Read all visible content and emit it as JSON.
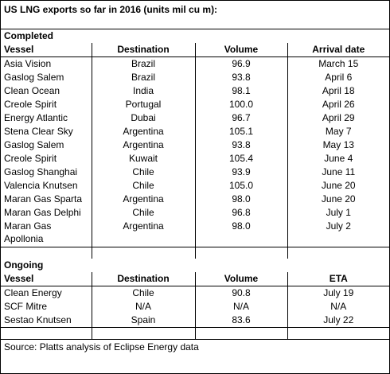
{
  "title": "US LNG exports so far in 2016 (units mil cu m):",
  "completed": {
    "section_label": "Completed",
    "headers": [
      "Vessel",
      "Destination",
      "Volume",
      "Arrival date"
    ],
    "rows": [
      [
        "Asia Vision",
        "Brazil",
        "96.9",
        "March 15"
      ],
      [
        "Gaslog Salem",
        "Brazil",
        "93.8",
        "April 6"
      ],
      [
        "Clean Ocean",
        "India",
        "98.1",
        "April 18"
      ],
      [
        "Creole Spirit",
        "Portugal",
        "100.0",
        "April 26"
      ],
      [
        "Energy Atlantic",
        "Dubai",
        "96.7",
        "April 29"
      ],
      [
        "Stena Clear Sky",
        "Argentina",
        "105.1",
        "May 7"
      ],
      [
        "Gaslog Salem",
        "Argentina",
        "93.8",
        "May 13"
      ],
      [
        "Creole Spirit",
        "Kuwait",
        "105.4",
        "June 4"
      ],
      [
        "Gaslog Shanghai",
        "Chile",
        "93.9",
        "June 11"
      ],
      [
        "Valencia Knutsen",
        "Chile",
        "105.0",
        "June 20"
      ],
      [
        "Maran Gas Sparta",
        "Argentina",
        "98.0",
        "June 20"
      ],
      [
        "Maran Gas Delphi",
        "Chile",
        "96.8",
        "July 1"
      ],
      [
        "Maran Gas Apollonia",
        "Argentina",
        "98.0",
        "July 2"
      ]
    ]
  },
  "ongoing": {
    "section_label": "Ongoing",
    "headers": [
      "Vessel",
      "Destination",
      "Volume",
      "ETA"
    ],
    "rows": [
      [
        "Clean Energy",
        "Chile",
        "90.8",
        "July 19"
      ],
      [
        "SCF Mitre",
        "N/A",
        "N/A",
        "N/A"
      ],
      [
        "Sestao Knutsen",
        "Spain",
        "83.6",
        "July 22"
      ]
    ]
  },
  "source": "Source: Platts analysis of Eclipse Energy data"
}
